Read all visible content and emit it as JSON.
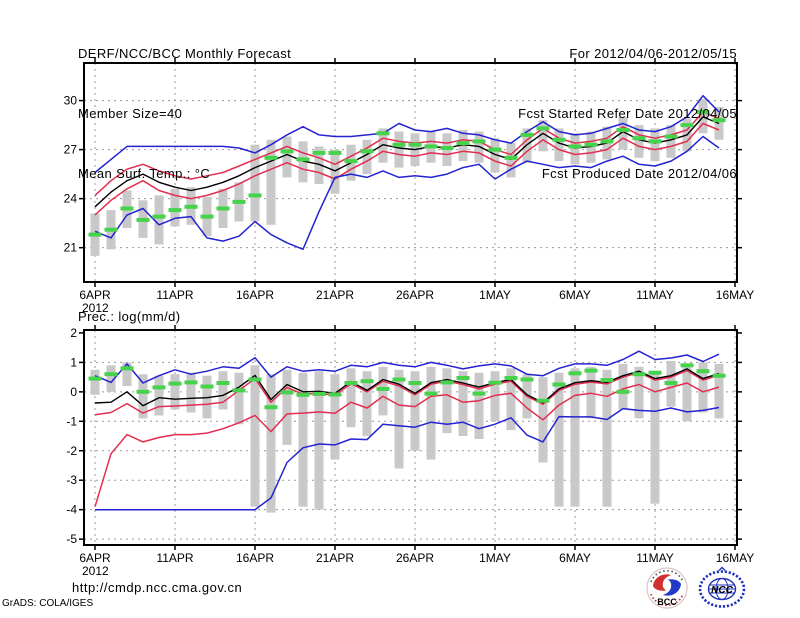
{
  "header": {
    "left_lines": [
      "DERF/NCC/BCC Monthly Forecast",
      "Member Size=40"
    ],
    "right_lines": [
      "For 2012/04/06-2012/05/15",
      "Fcst Started Refer Date 2012/04/05",
      "Fcst Produced Date 2012/04/06"
    ]
  },
  "footer": {
    "url": "http://cmdp.ncc.cma.gov.cn",
    "credit": "GrADS: COLA/IGES",
    "logos": [
      {
        "name": "bcc-logo",
        "label": "BCC"
      },
      {
        "name": "ncc-logo",
        "label": "NCC"
      }
    ]
  },
  "colors": {
    "max_min": "#2323d2",
    "spread": "#e22e50",
    "mean": "#000000",
    "obs": "#46d24b",
    "bars": "#c9c9c9",
    "grid": "#999999",
    "frame": "#000000"
  },
  "chart_data": [
    {
      "name": "surface-temperature",
      "type": "line",
      "title": "Mean Surf. Temp.: °C",
      "x_tick_labels": [
        "6APR",
        "11APR",
        "16APR",
        "21APR",
        "26APR",
        "1MAY",
        "6MAY",
        "11MAY",
        "16MAY"
      ],
      "x_tick_days": [
        0,
        5,
        10,
        15,
        20,
        25,
        30,
        35,
        40
      ],
      "x_year_label": "2012",
      "n_days": 40,
      "ylim": [
        18.9,
        32.3
      ],
      "yticks": [
        21,
        24,
        27,
        30
      ],
      "grid": true,
      "legend_position": "none",
      "series": [
        {
          "name": "max",
          "color_key": "max_min",
          "values": [
            25.6,
            26.4,
            27.2,
            27.2,
            27.2,
            27.2,
            27.2,
            27.2,
            27.2,
            27.1,
            26.8,
            27.3,
            27.9,
            28.4,
            27.9,
            27.8,
            27.8,
            27.9,
            28.0,
            28.6,
            28.2,
            28.1,
            28.3,
            28.0,
            27.9,
            27.6,
            27.4,
            28.1,
            28.7,
            28.1,
            27.9,
            28.0,
            28.3,
            28.6,
            28.2,
            28.1,
            28.4,
            29.0,
            30.3,
            29.3
          ]
        },
        {
          "name": "upper-spread",
          "color_key": "spread",
          "values": [
            24.2,
            25.1,
            25.8,
            26.1,
            25.7,
            25.4,
            25.2,
            25.4,
            25.6,
            26.0,
            26.4,
            26.8,
            27.2,
            26.8,
            26.5,
            26.1,
            26.6,
            27.1,
            27.7,
            27.5,
            27.4,
            27.5,
            27.4,
            27.6,
            27.5,
            27.0,
            26.7,
            27.6,
            28.3,
            27.7,
            27.4,
            27.5,
            27.7,
            28.4,
            27.9,
            27.7,
            27.9,
            28.2,
            29.3,
            28.9
          ]
        },
        {
          "name": "mean",
          "color_key": "mean",
          "values": [
            23.5,
            24.4,
            25.1,
            25.5,
            25.0,
            24.7,
            24.5,
            24.7,
            25.0,
            25.4,
            25.9,
            26.3,
            26.7,
            26.3,
            26.1,
            25.7,
            26.2,
            26.7,
            27.3,
            27.1,
            27.0,
            27.2,
            27.1,
            27.3,
            27.2,
            26.7,
            26.4,
            27.3,
            28.0,
            27.4,
            27.1,
            27.2,
            27.4,
            28.1,
            27.6,
            27.4,
            27.6,
            27.9,
            29.0,
            28.6
          ]
        },
        {
          "name": "lower-spread",
          "color_key": "spread",
          "values": [
            23.0,
            23.9,
            24.6,
            25.1,
            24.5,
            24.2,
            24.0,
            24.2,
            24.5,
            24.9,
            25.4,
            25.8,
            26.2,
            25.8,
            25.6,
            25.2,
            25.8,
            26.3,
            26.9,
            26.7,
            26.6,
            26.8,
            26.7,
            26.9,
            26.8,
            26.3,
            26.0,
            26.9,
            27.6,
            27.0,
            26.7,
            26.8,
            27.0,
            27.7,
            27.2,
            27.0,
            27.2,
            27.5,
            28.6,
            28.2
          ]
        },
        {
          "name": "min",
          "color_key": "max_min",
          "values": [
            22.0,
            21.6,
            23.0,
            23.4,
            22.4,
            22.8,
            22.9,
            21.6,
            21.4,
            21.7,
            22.6,
            21.8,
            21.3,
            20.9,
            23.2,
            25.3,
            25.5,
            25.3,
            25.7,
            25.3,
            25.4,
            25.3,
            25.5,
            25.9,
            26.1,
            25.2,
            25.8,
            26.3,
            26.1,
            25.9,
            26.0,
            25.9,
            26.3,
            26.6,
            26.1,
            26.0,
            26.3,
            26.9,
            27.8,
            27.1
          ]
        }
      ],
      "bars": {
        "lo": [
          20.5,
          20.9,
          22.2,
          21.6,
          21.2,
          22.3,
          22.4,
          21.7,
          22.2,
          22.6,
          22.6,
          22.4,
          25.3,
          25.0,
          24.9,
          24.3,
          25.1,
          25.5,
          26.2,
          25.9,
          26.0,
          26.2,
          26.0,
          26.3,
          26.2,
          25.6,
          25.3,
          26.2,
          26.9,
          26.3,
          26.1,
          26.2,
          26.4,
          27.0,
          26.5,
          26.3,
          26.5,
          26.9,
          28.0,
          27.6
        ],
        "hi": [
          23.1,
          23.3,
          24.5,
          23.9,
          24.2,
          24.6,
          24.7,
          24.1,
          24.6,
          25.0,
          27.3,
          27.6,
          27.8,
          27.5,
          27.2,
          27.0,
          27.3,
          27.6,
          28.3,
          28.1,
          28.0,
          28.1,
          28.0,
          28.2,
          28.1,
          27.7,
          27.4,
          28.3,
          28.8,
          28.3,
          28.0,
          28.1,
          28.4,
          29.0,
          28.5,
          28.3,
          28.5,
          28.9,
          30.1,
          29.6
        ]
      },
      "obs_dashes": {
        "values": [
          21.8,
          22.1,
          23.4,
          22.7,
          22.9,
          23.3,
          23.5,
          22.9,
          23.4,
          23.8,
          24.2,
          26.5,
          26.9,
          26.4,
          26.8,
          26.8,
          26.3,
          26.9,
          28.0,
          27.3,
          27.3,
          27.2,
          27.1,
          27.4,
          27.5,
          27.0,
          26.5,
          27.9,
          28.3,
          27.6,
          27.2,
          27.3,
          27.5,
          28.2,
          27.7,
          27.5,
          27.8,
          28.5,
          29.3,
          28.8
        ]
      }
    },
    {
      "name": "precipitation",
      "type": "line",
      "title": "Prec.: log(mm/d)",
      "x_tick_labels": [
        "6APR",
        "11APR",
        "16APR",
        "21APR",
        "26APR",
        "1MAY",
        "6MAY",
        "11MAY",
        "16MAY"
      ],
      "x_tick_days": [
        0,
        5,
        10,
        15,
        20,
        25,
        30,
        35,
        40
      ],
      "x_year_label": "2012",
      "n_days": 40,
      "ylim": [
        -5.2,
        2.1
      ],
      "yticks": [
        -5,
        -4,
        -3,
        -2,
        -1,
        0,
        1,
        2
      ],
      "grid": true,
      "legend_position": "none",
      "series": [
        {
          "name": "max",
          "color_key": "max_min",
          "values": [
            0.55,
            0.32,
            0.95,
            0.3,
            0.55,
            0.75,
            0.6,
            0.7,
            0.85,
            0.8,
            1.16,
            0.5,
            0.85,
            0.7,
            0.75,
            0.7,
            0.9,
            0.85,
            1.0,
            0.9,
            0.85,
            1.0,
            0.9,
            0.78,
            0.88,
            0.95,
            0.88,
            0.6,
            0.55,
            0.8,
            0.95,
            0.95,
            0.9,
            1.1,
            1.38,
            1.1,
            1.15,
            1.25,
            1.03,
            1.28
          ]
        },
        {
          "name": "upper-spread",
          "color_key": "spread",
          "values": [
            -0.78,
            -0.7,
            -0.4,
            -0.72,
            -0.5,
            -0.48,
            -0.45,
            -0.42,
            -0.35,
            0.05,
            0.45,
            -0.35,
            0.15,
            -0.08,
            -0.05,
            -0.12,
            0.28,
            0.0,
            0.36,
            0.2,
            -0.1,
            0.26,
            0.36,
            0.25,
            0.1,
            0.26,
            0.36,
            -0.15,
            -0.42,
            0.05,
            0.26,
            0.33,
            0.27,
            0.5,
            0.66,
            0.4,
            0.5,
            0.72,
            0.4,
            0.57
          ]
        },
        {
          "name": "mean",
          "color_key": "mean",
          "values": [
            -0.38,
            -0.35,
            0.0,
            -0.47,
            -0.2,
            -0.25,
            -0.22,
            -0.2,
            -0.12,
            0.16,
            0.56,
            -0.26,
            0.25,
            0.0,
            0.02,
            -0.05,
            0.35,
            0.05,
            0.42,
            0.26,
            -0.05,
            0.31,
            0.42,
            0.3,
            0.16,
            0.31,
            0.42,
            -0.1,
            -0.37,
            0.1,
            0.31,
            0.38,
            0.32,
            0.55,
            0.7,
            0.45,
            0.55,
            0.78,
            0.45,
            0.62
          ]
        },
        {
          "name": "lower-spread",
          "color_key": "spread",
          "values": [
            -3.9,
            -2.1,
            -1.45,
            -1.7,
            -1.55,
            -1.45,
            -1.45,
            -1.4,
            -1.25,
            -1.05,
            -0.8,
            -1.35,
            -0.75,
            -0.72,
            -0.68,
            -0.73,
            -0.35,
            -0.55,
            -0.15,
            -0.45,
            -0.5,
            -0.15,
            -0.1,
            -0.35,
            -0.3,
            -0.12,
            -0.05,
            -0.55,
            -0.95,
            -0.45,
            -0.12,
            -0.05,
            -0.15,
            0.1,
            0.25,
            0.0,
            0.15,
            0.3,
            0.0,
            0.16
          ]
        },
        {
          "name": "min",
          "color_key": "max_min",
          "values": [
            -4.0,
            -4.0,
            -4.0,
            -4.0,
            -4.0,
            -4.0,
            -4.0,
            -4.0,
            -4.0,
            -4.0,
            -4.0,
            -3.6,
            -2.4,
            -1.9,
            -1.77,
            -1.8,
            -1.6,
            -1.62,
            -1.1,
            -1.15,
            -1.2,
            -1.03,
            -1.1,
            -1.03,
            -1.25,
            -1.1,
            -0.88,
            -1.47,
            -1.7,
            -0.84,
            -0.85,
            -0.85,
            -0.94,
            -0.57,
            -0.63,
            -0.66,
            -0.55,
            -0.68,
            -0.63,
            -0.53
          ]
        }
      ],
      "bars": {
        "lo": [
          -0.1,
          0.0,
          0.2,
          -0.9,
          -0.8,
          -0.6,
          -0.7,
          -0.9,
          -0.6,
          -1.1,
          -3.9,
          -4.1,
          -1.8,
          -3.9,
          -4.0,
          -2.3,
          -1.2,
          -1.5,
          -0.8,
          -2.6,
          -2.0,
          -2.3,
          -1.4,
          -1.5,
          -1.6,
          -1.0,
          -1.3,
          -0.9,
          -2.4,
          -3.9,
          -3.9,
          -0.9,
          -3.9,
          -0.6,
          -0.9,
          -3.8,
          -0.5,
          -1.0,
          -0.7,
          -0.9
        ],
        "hi": [
          0.75,
          0.9,
          1.0,
          0.6,
          0.55,
          0.6,
          0.65,
          0.55,
          0.7,
          0.65,
          0.9,
          0.6,
          0.75,
          0.65,
          0.7,
          0.6,
          0.8,
          0.7,
          0.85,
          0.75,
          0.7,
          0.85,
          0.8,
          0.7,
          0.65,
          0.7,
          0.8,
          0.6,
          0.5,
          0.65,
          0.8,
          0.85,
          0.75,
          0.95,
          0.85,
          0.7,
          1.05,
          0.9,
          1.0,
          0.95
        ]
      },
      "obs_dashes": {
        "values": [
          0.45,
          0.6,
          0.8,
          0.0,
          0.15,
          0.28,
          0.32,
          0.18,
          0.3,
          0.05,
          0.42,
          -0.52,
          -0.02,
          -0.1,
          -0.07,
          -0.09,
          0.3,
          0.36,
          0.1,
          0.42,
          0.3,
          -0.06,
          0.32,
          0.47,
          -0.06,
          0.31,
          0.47,
          0.42,
          -0.3,
          0.25,
          0.63,
          0.72,
          0.4,
          0.0,
          0.6,
          0.65,
          0.3,
          0.9,
          0.7,
          0.55
        ]
      }
    }
  ]
}
